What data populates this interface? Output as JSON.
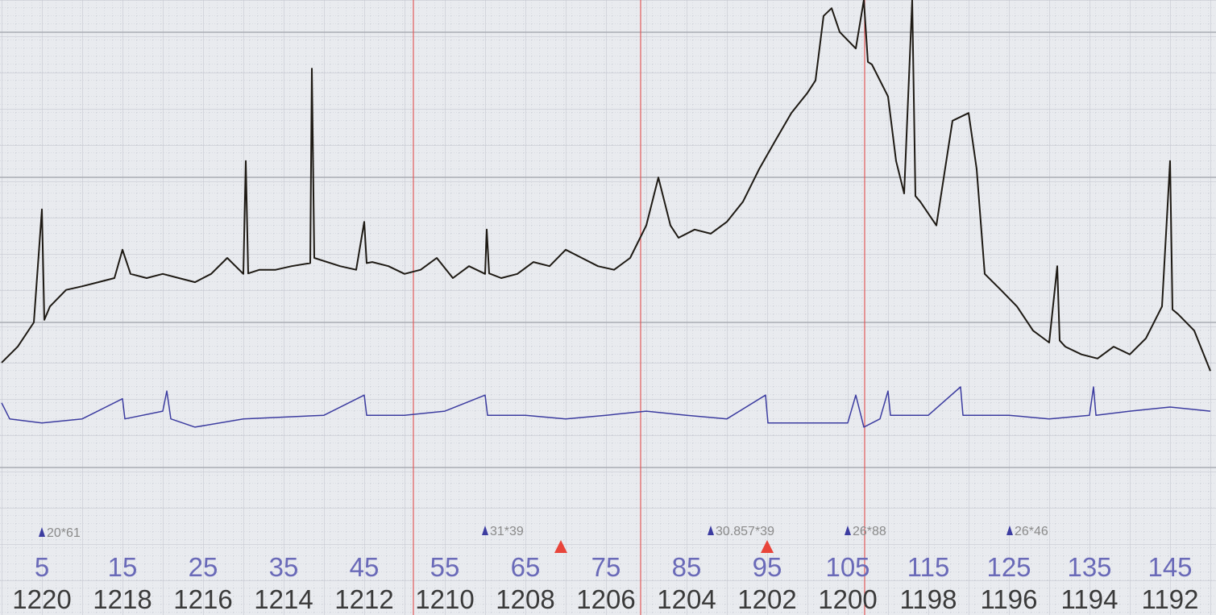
{
  "chart_data": {
    "type": "line",
    "xlim": [
      0,
      150
    ],
    "ylim": [
      0,
      100
    ],
    "xticks": [
      5,
      15,
      25,
      35,
      45,
      55,
      65,
      75,
      85,
      95,
      105,
      115,
      125,
      135,
      145
    ],
    "x2ticks": [
      1220,
      1218,
      1216,
      1214,
      1212,
      1210,
      1208,
      1206,
      1204,
      1202,
      1200,
      1198,
      1196,
      1194,
      1192
    ],
    "annotations": [
      "20*61",
      "31*39",
      "30.857*39",
      "26*88",
      "26*46"
    ],
    "series": [
      {
        "color": "#1e1a14",
        "x": [
          0,
          2,
          4,
          5,
          5.3,
          6,
          8,
          10,
          12,
          14,
          15,
          16,
          18,
          20,
          22,
          24,
          26,
          28,
          30,
          30.3,
          30.6,
          32,
          34,
          36,
          38.3,
          38.5,
          38.8,
          42,
          44,
          45,
          45.3,
          46,
          48,
          50,
          52,
          54,
          56,
          58,
          60,
          60.2,
          60.5,
          62,
          64,
          66,
          68,
          70,
          72,
          74,
          76,
          78,
          80,
          81.5,
          83,
          84,
          86,
          88,
          90,
          92,
          94,
          96,
          98,
          100,
          101,
          102,
          103,
          104,
          106,
          107,
          107.5,
          108,
          110,
          111,
          112,
          113,
          113.4,
          114,
          116,
          118,
          120,
          121,
          122,
          124,
          126,
          128,
          130,
          131,
          131.3,
          132,
          134,
          136,
          138,
          140,
          142,
          144,
          145,
          145.3,
          146,
          148,
          150
        ],
        "values": [
          29.7,
          32.8,
          37.5,
          59.4,
          38,
          40.6,
          43.8,
          44.5,
          45.3,
          46.1,
          51.6,
          46.9,
          46.1,
          46.9,
          46.1,
          45.3,
          46.9,
          50,
          46.9,
          68.8,
          47,
          47.7,
          47.7,
          48.4,
          49,
          86.7,
          50,
          48.4,
          47.7,
          57,
          49,
          49.2,
          48.4,
          46.9,
          47.7,
          50,
          46.1,
          48.4,
          46.9,
          55.5,
          47,
          46.1,
          46.9,
          49.2,
          48.4,
          51.6,
          50,
          48.4,
          47.7,
          50,
          56.3,
          65.6,
          56.3,
          53.9,
          55.5,
          54.7,
          57,
          60.9,
          67.2,
          72.7,
          78.1,
          82,
          84.4,
          96.9,
          98.4,
          93.8,
          90.6,
          100,
          88,
          87.5,
          81.3,
          68.8,
          62.5,
          100,
          62,
          60.9,
          56.3,
          76.6,
          78.1,
          67.2,
          46.9,
          43.8,
          40.6,
          35.9,
          33.6,
          48.4,
          34,
          32.8,
          31.3,
          30.5,
          32.8,
          31.3,
          34.4,
          40.6,
          68.8,
          40,
          39.1,
          35.9,
          28.1
        ]
      },
      {
        "color": "#3c3ca0",
        "x": [
          0,
          1,
          5,
          10,
          15,
          15.3,
          20,
          20.5,
          21,
          24,
          30,
          40,
          45,
          45.3,
          50,
          55,
          60,
          60.3,
          65,
          70,
          75,
          80,
          85,
          90,
          94.8,
          95.1,
          100,
          105,
          106,
          107,
          109,
          110,
          110.3,
          115,
          119,
          119.3,
          125,
          130,
          135,
          135.5,
          135.8,
          140,
          145,
          150
        ],
        "values": [
          21.9,
          18.8,
          18,
          18.8,
          22.7,
          18.8,
          20.3,
          24.2,
          18.8,
          17.2,
          18.8,
          19.5,
          23.4,
          19.5,
          19.5,
          20.3,
          23.4,
          19.5,
          19.5,
          18.8,
          19.5,
          20.3,
          19.5,
          18.8,
          23.4,
          18,
          18,
          18,
          23.4,
          17.2,
          18.8,
          24.2,
          19.5,
          19.5,
          25,
          19.5,
          19.5,
          18.8,
          19.5,
          25,
          19.5,
          20.3,
          21.1,
          20.3
        ]
      }
    ]
  }
}
